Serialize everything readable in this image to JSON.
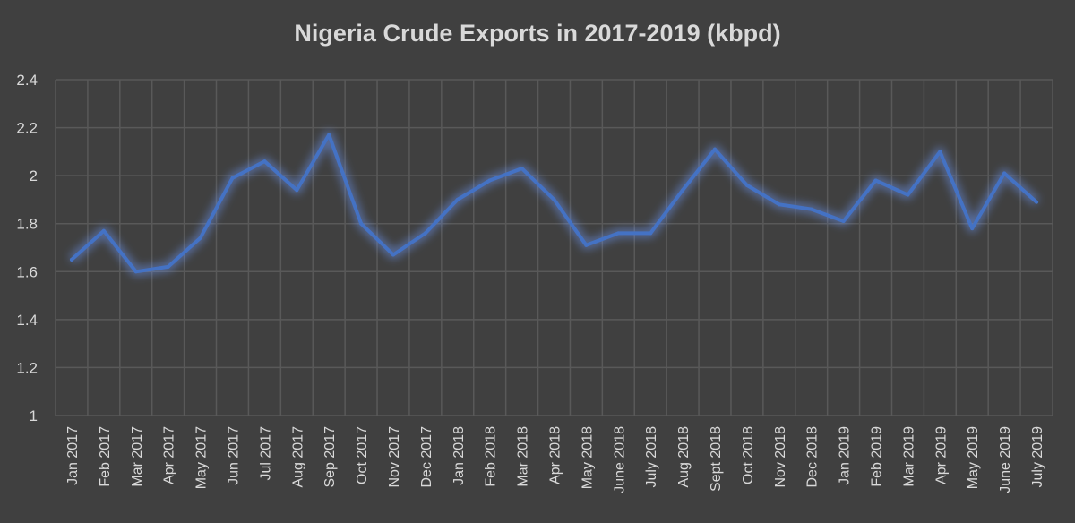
{
  "chart_data": {
    "type": "line",
    "title": "Nigeria Crude Exports in 2017-2019 (kbpd)",
    "xlabel": "",
    "ylabel": "",
    "ylim": [
      1,
      2.4
    ],
    "yticks": [
      "1",
      "1.2",
      "1.4",
      "1.6",
      "1.8",
      "2",
      "2.2",
      "2.4"
    ],
    "grid": true,
    "colors": {
      "background": "#404040",
      "grid": "#595959",
      "line": "#4472c4",
      "text": "#d9d9d9"
    },
    "categories": [
      "Jan 2017",
      "Feb 2017",
      "Mar 2017",
      "Apr 2017",
      "May 2017",
      "Jun 2017",
      "Jul 2017",
      "Aug 2017",
      "Sep 2017",
      "Oct 2017",
      "Nov 2017",
      "Dec 2017",
      "Jan 2018",
      "Feb 2018",
      "Mar 2018",
      "Apr 2018",
      "May 2018",
      "June 2018",
      "July 2018",
      "Aug 2018",
      "Sept 2018",
      "Oct 2018",
      "Nov 2018",
      "Dec 2018",
      "Jan 2019",
      "Feb 2019",
      "Mar 2019",
      "Apr 2019",
      "May 2019",
      "June 2019",
      "July 2019"
    ],
    "series": [
      {
        "values": [
          1.65,
          1.77,
          1.6,
          1.62,
          1.74,
          1.99,
          2.06,
          1.94,
          2.17,
          1.8,
          1.67,
          1.76,
          1.9,
          1.98,
          2.03,
          1.9,
          1.71,
          1.76,
          1.76,
          1.94,
          2.11,
          1.96,
          1.88,
          1.86,
          1.81,
          1.98,
          1.92,
          2.1,
          1.78,
          2.01,
          1.89
        ]
      }
    ]
  }
}
